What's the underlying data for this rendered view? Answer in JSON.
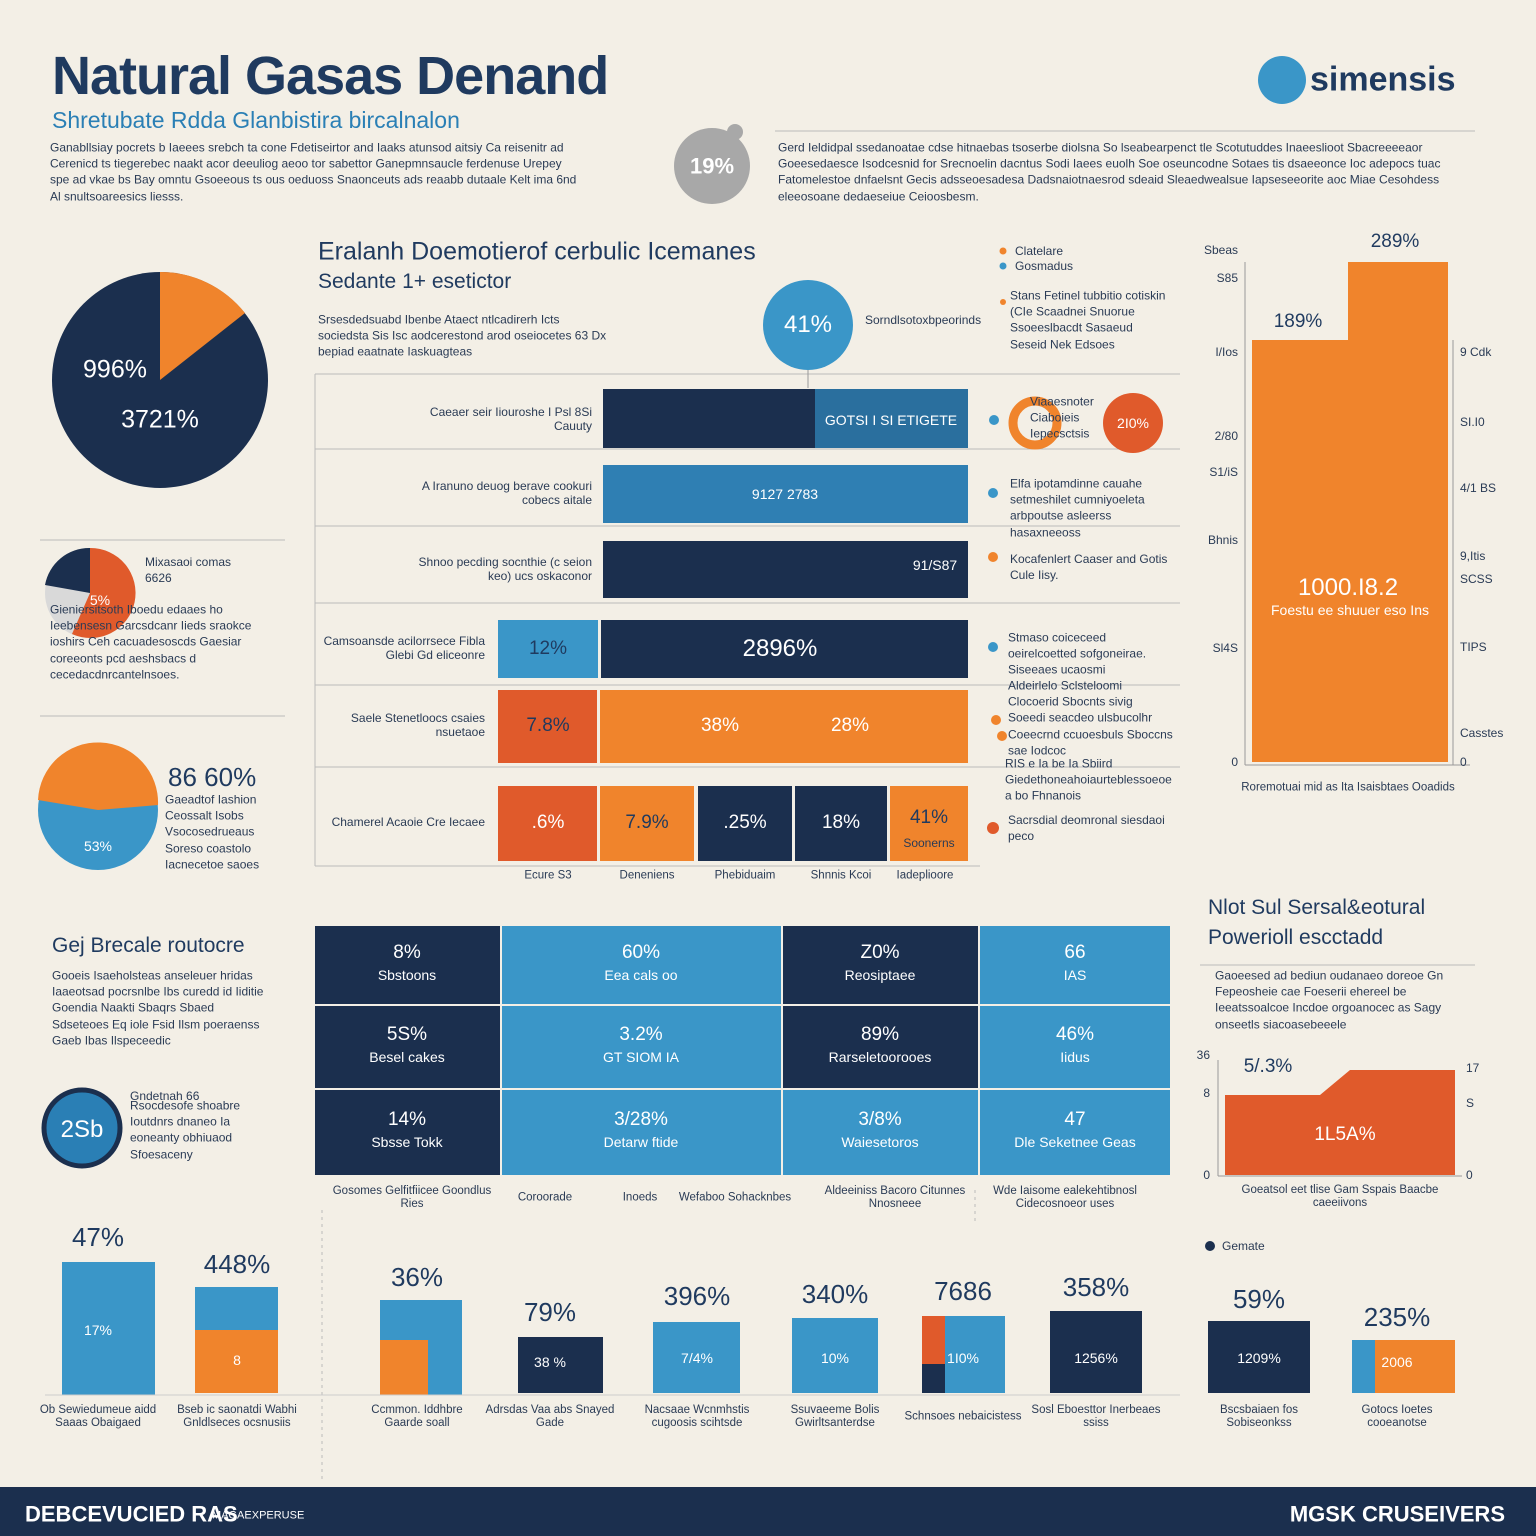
{
  "header": {
    "title": "Natural Gasas Denand",
    "subtitle": "Shretubate Rdda Glanbistira bircalnalon",
    "intro_left": "Ganabllsiay pocrets b Iaeees srebch ta cone Fdetiseirtor and Iaaks atunsod aitsiy Ca reisenitr ad Cerenicd ts tiegerebec naakt acor deeuliog aeoo tor sabettor Ganepmnsaucle ferdenuse Urepey spe ad vkae bs Bay omntu Gsoeeous ts ous oeduoss Snaonceuts ads reaabb dutaale Kelt ima 6nd Al snultsoareesics liesss.",
    "badge": "19%",
    "intro_right": "Gerd Ieldidpal ssedanoatae cdse hitnaebas tsoserbe diolsna So lseabearpenct tle Scotutuddes Inaeeslioot Sbacreeeeaor Goeesedaesce Isodcesnid for Srecnoelin dacntus Sodi Iaees euolh Soe oseuncodne Sotaes tis dsaeeonce Ioc adepocs tuac Fatomelestoe dnfaelsnt Gecis adsseoesadesa Dadsnaiotnaesrod sdeaid Sleaedwealsue Iapseseeorite aoc Miae Cesohdess eleeosoane dedaeseiue Ceioosbesm.",
    "logo": "simensis"
  },
  "top_pie": {
    "labels": [
      "996%",
      "3721%"
    ]
  },
  "small_pie": {
    "title": "Mixasaoi comas 6626",
    "label": "5%",
    "text": "Gieniersitsoth Iboedu edaaes ho Ieebensesn Garcsdcanr Iieds sraokce ioshirs Ceh cacuadesoscds Gaesiar coreeonts pcd aeshsbacs d cecedacdnrcantelnsoes."
  },
  "pie3": {
    "title": "86 60%",
    "label": "53%",
    "text": "Gaeadtof Iashion Ceossalt Isobs Vsocosedrueaus Soreso coastolo Iacnecetoe saoes"
  },
  "bars_section": {
    "title": "Eralanh Doemotierof cerbulic Icemanes",
    "subtitle": "Sedante 1+ esetictor",
    "text": "Srsesdedsuabd Ibenbe Ataect ntlcadirerh Icts sociedsta Sis Isc aodcerestond arod oseiocetes 63 Dx bepiad eaatnate Iaskuagteas",
    "circle_value": "41%",
    "circle_caption": "Sorndlsotoxbpeorinds",
    "legend": [
      "Clatelare",
      "Gosmadus"
    ],
    "note": "Stans Fetinel tubbitio cotiskin (CIe Scaadnei Snuorue Ssoeeslbacdt Sasaeud Seseid Nek Edsoes",
    "rows": [
      {
        "label": "Caeaer seir Iiouroshe I Psl 8Si Cauuty",
        "values": [
          "GOTSI I SI ETIGETE"
        ]
      },
      {
        "label": "A Iranuno deuog berave cookuri cobecs aitale",
        "values": [
          "9127 2783"
        ]
      },
      {
        "label": "Shnoo pecding socnthie (c seion keo) ucs oskaconor",
        "values": [
          "91/S87"
        ]
      },
      {
        "label": "Camsoansde acilorrsece Fibla Glebi Gd eliceonre",
        "values": [
          "12%",
          "2896%"
        ]
      },
      {
        "label": "Saele Stenetloocs csaies nsuetaoe",
        "values": [
          "7.8%",
          "38%",
          "28%"
        ]
      },
      {
        "label": "Chamerel Acaoie Cre Iecaee",
        "values": [
          ".6%",
          "7.9%",
          ".25%",
          "18%",
          "41%",
          "Soonerns"
        ]
      }
    ],
    "x_labels": [
      "Ecure S3",
      "Deneniens",
      "Phebiduaim",
      "Shnnis Kcoi",
      "Iadeplioore"
    ],
    "side_icon_text": "Viaaesnoter Ciaboieis Iepecsctsis",
    "side_circle": "2I0%",
    "side_notes": [
      "Elfa ipotamdinne cauahe setmeshilet cumniyoeleta arbpoutse asleerss hasaxneeoss",
      "Kocafenlert Caaser and Gotis Cule Iisy.",
      "Stmaso coiceceed oeirelcoetted sofgoneirae. Siseeaes ucaosmi",
      "Aldeirlelo Sclsteloomi Clocoerid Sbocnts sivig Soeedi seacdeo ulsbucolhr Coeecrnd ccuoesbuls Sboccns sae Iodcoc",
      "RIS e Ia be Ia Sbiird Giedethoneahoiaurteblessoeoe a bo Fhnanois",
      "Sacrsdial deomronal siesdaoi peco"
    ]
  },
  "tall_bar": {
    "top_label": "289%",
    "mid_label": "189%",
    "center_value": "1000.I8.2",
    "center_caption": "Foestu ee shuuer eso Ins",
    "left_ticks": [
      "Sbeas",
      "S85",
      "I/Ios",
      "2/80",
      "S1/iS",
      "Bhnis",
      "Sl4S",
      "0"
    ],
    "right_ticks": [
      "9 Cdk",
      "SI.I0",
      "4/1 BS",
      "9,Itis",
      "SCSS",
      "TIPS",
      "Casstes",
      "0"
    ],
    "caption": "Roremotuai mid as Ita Isaisbtaes Ooadids"
  },
  "grid": {
    "cells": [
      [
        [
          "8%",
          "Sbstoons"
        ],
        [
          "60%",
          "Eea cals oo"
        ],
        [
          "Z0%",
          "Reosiptaee"
        ],
        [
          "66",
          "IAS"
        ]
      ],
      [
        [
          "5S%",
          "Besel cakes"
        ],
        [
          "3.2%",
          "GT SIOM IA"
        ],
        [
          "89%",
          "Rarseletoorooes"
        ],
        [
          "46%",
          "Iidus"
        ]
      ],
      [
        [
          "14%",
          "Sbsse Tokk"
        ],
        [
          "3/28%",
          "Detarw ftide"
        ],
        [
          "3/8%",
          "Waiesetoros"
        ],
        [
          "47",
          "Dle Seketnee Geas"
        ]
      ]
    ],
    "captions": [
      "Gosomes Gelfitfiicee Goondlus Ries",
      "Coroorade",
      "Inoeds",
      "Wefaboo Sohacknbes",
      "Aldeeiniss Bacoro Citunnes Nnosneee",
      "Wde Iaisome ealekehtibnosl Cidecosnoeor uses"
    ]
  },
  "left_lower": {
    "title": "Gej Brecale routocre",
    "text": "Gooeis Isaeholsteas anseleuer hridas Iaaeotsad pocrsnlbe Ibs curedd id Iiditie Goendia Naakti Sbaqrs Sbaed Sdseteoes Eq iole Fsid Ilsm poeraenss Gaeb Ibas Ilspeceedic",
    "circle_value": "2Sb",
    "circle_title": "Gndetnah 66",
    "circle_text": "Rsocdesofe shoabre Ioutdnrs dnaneo Ia eoneanty obhiuaod Sfoesaceny"
  },
  "power": {
    "title_lines": [
      "Nlot Sul Sersal&eotural",
      "Powerioll escctadd"
    ],
    "text": "Gaoeesed ad bediun oudanaeo doreoe Gn Fepeosheie cae Foeserii ehereel be Ieeatssoalcoe Incdoe orgoanocec as Sagy onseetls siacoasebeeele",
    "top_label": "5/.3%",
    "area_label": "1L5A%",
    "left_ticks": [
      "36",
      "8",
      "0"
    ],
    "right_ticks": [
      "17",
      "S",
      "0"
    ],
    "caption": "Goeatsol eet tlise Gam Sspais Baacbe caeeiivons"
  },
  "bottom_bars": {
    "legend": "Gemate",
    "groups": [
      {
        "value": "47%",
        "inner": "17%",
        "caption": "Ob Sewiedumeue aidd Saaas Obaigaed"
      },
      {
        "value": "448%",
        "inner": "8",
        "caption": "Bseb ic saonatdi Wabhi Gnldlseces ocsnusiis"
      },
      {
        "value": "36%",
        "inner": "",
        "caption": "Ccmmon. Iddhbre Gaarde soall"
      },
      {
        "value": "79%",
        "inner": "38 %",
        "caption": "Adrsdas Vaa abs Snayed Gade"
      },
      {
        "value": "396%",
        "inner": "7/4%",
        "caption": "Nacsaae Wcnmhstis cugoosis scihtsde"
      },
      {
        "value": "340%",
        "inner": "10%",
        "caption": "Ssuvaeeme Bolis Gwirltsanterdse"
      },
      {
        "value": "7686",
        "inner": "1I0%",
        "caption": "Schnsoes nebaicistess"
      },
      {
        "value": "358%",
        "inner": "1256%",
        "caption": "Sosl Eboesttor Inerbeaes ssiss"
      },
      {
        "value": "59%",
        "inner": "1209%",
        "caption": "Bscsbaiaen fos Sobiseonkss"
      },
      {
        "value": "235%",
        "inner": "2006",
        "caption": "Gotocs Ioetes cooeanotse"
      }
    ]
  },
  "footer": {
    "left": "DEBCEVUCIED RAS",
    "left_small": "MAGAEXPERUSE",
    "right": "MGSK CRUSEIVERS"
  }
}
